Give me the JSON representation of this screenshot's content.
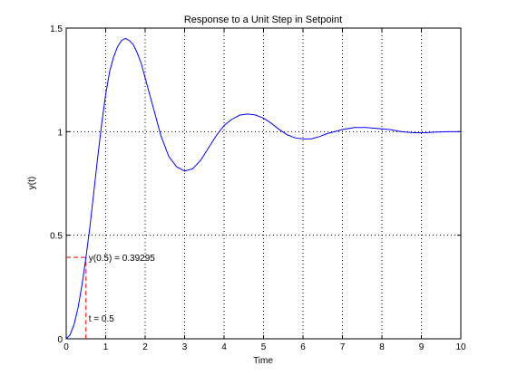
{
  "chart_data": {
    "type": "line",
    "title": "Response to a Unit Step in Setpoint",
    "xlabel": "Time",
    "ylabel": "y(t)",
    "xlim": [
      0,
      10
    ],
    "ylim": [
      0,
      1.5
    ],
    "xticks": [
      0,
      1,
      2,
      3,
      4,
      5,
      6,
      7,
      8,
      9,
      10
    ],
    "yticks": [
      0,
      0.5,
      1,
      1.5
    ],
    "ytick_labels": [
      "0",
      "0.5",
      "1",
      "1.5"
    ],
    "grid": true,
    "series": [
      {
        "color": "#0000ff",
        "x": [
          0,
          0.1,
          0.2,
          0.3,
          0.4,
          0.5,
          0.6,
          0.7,
          0.8,
          0.9,
          1.0,
          1.1,
          1.2,
          1.3,
          1.4,
          1.5,
          1.6,
          1.7,
          1.8,
          1.9,
          2.0,
          2.2,
          2.4,
          2.6,
          2.8,
          3.0,
          3.2,
          3.4,
          3.6,
          3.8,
          4.0,
          4.2,
          4.4,
          4.6,
          4.8,
          5.0,
          5.2,
          5.4,
          5.6,
          5.8,
          6.0,
          6.2,
          6.4,
          6.6,
          6.8,
          7.0,
          7.3,
          7.6,
          7.9,
          8.2,
          8.5,
          8.8,
          9.1,
          9.4,
          9.7,
          10.0
        ],
        "y": [
          0,
          0.02,
          0.07,
          0.15,
          0.26,
          0.39295,
          0.54,
          0.71,
          0.88,
          1.04,
          1.18,
          1.29,
          1.36,
          1.41,
          1.44,
          1.45,
          1.44,
          1.42,
          1.38,
          1.33,
          1.26,
          1.12,
          0.98,
          0.88,
          0.83,
          0.81,
          0.82,
          0.86,
          0.92,
          0.98,
          1.03,
          1.06,
          1.08,
          1.085,
          1.08,
          1.065,
          1.04,
          1.01,
          0.985,
          0.97,
          0.965,
          0.965,
          0.975,
          0.99,
          1.0,
          1.01,
          1.02,
          1.02,
          1.015,
          1.01,
          1.0,
          0.995,
          0.995,
          0.998,
          1.0,
          1.0
        ]
      }
    ],
    "marker": {
      "t": 0.5,
      "y": 0.39295,
      "color": "#ff0000",
      "annotation_y": "y(0.5) = 0.39295",
      "annotation_t": "t = 0.5",
      "annotation_t_y": 0.1
    }
  }
}
